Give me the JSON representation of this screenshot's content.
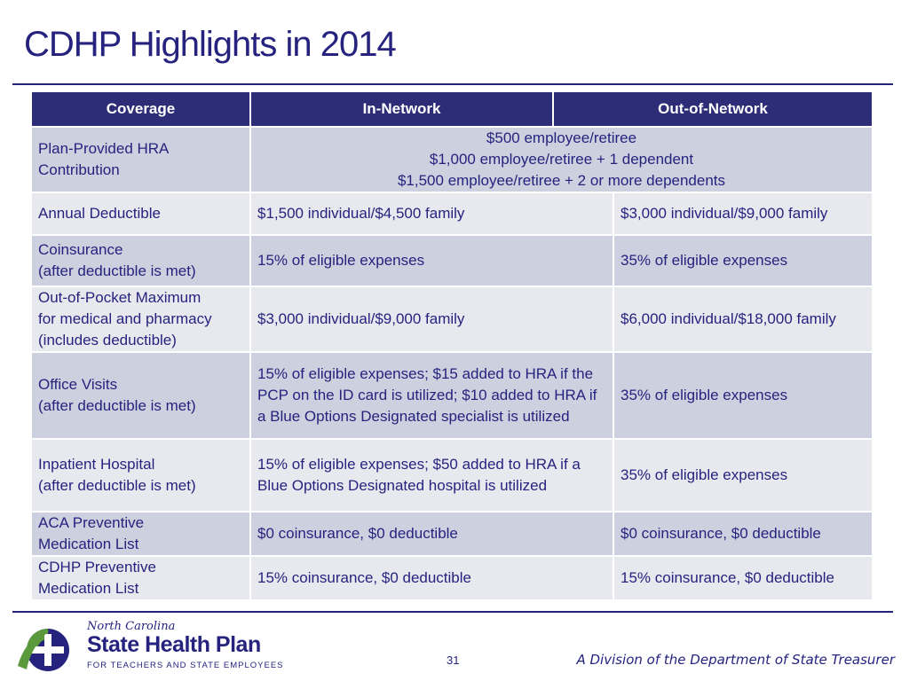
{
  "slide": {
    "title": "CDHP Highlights in 2014",
    "page_number": "31",
    "footer_right": "A Division of the Department of State Treasurer"
  },
  "logo": {
    "state": "North Carolina",
    "name": "State Health Plan",
    "tagline": "FOR TEACHERS AND STATE EMPLOYEES"
  },
  "table": {
    "headers": [
      "Coverage",
      "In-Network",
      "Out-of-Network"
    ],
    "rows": [
      {
        "coverage": [
          "Plan-Provided HRA",
          "Contribution"
        ],
        "shared": [
          "$500 employee/retiree",
          "$1,000 employee/retiree + 1 dependent",
          "$1,500 employee/retiree + 2 or more dependents"
        ]
      },
      {
        "coverage": [
          "Annual Deductible"
        ],
        "in_network": "$1,500 individual/$4,500 family",
        "out_of_network": "$3,000 individual/$9,000 family"
      },
      {
        "coverage": [
          "Coinsurance",
          "(after deductible is met)"
        ],
        "in_network": "15% of eligible expenses",
        "out_of_network": "35% of eligible expenses"
      },
      {
        "coverage": [
          "Out-of-Pocket Maximum",
          "for medical and pharmacy",
          "(includes deductible)"
        ],
        "in_network": "$3,000 individual/$9,000 family",
        "out_of_network": "$6,000 individual/$18,000 family"
      },
      {
        "coverage": [
          "Office Visits",
          "(after deductible is met)"
        ],
        "in_network": "15% of eligible expenses; $15 added to HRA if the PCP on the ID card is utilized; $10 added to HRA if a Blue Options Designated specialist is utilized",
        "out_of_network": "35% of eligible expenses"
      },
      {
        "coverage": [
          "Inpatient Hospital",
          "(after deductible is met)"
        ],
        "in_network": "15% of eligible expenses; $50 added to HRA if a Blue Options Designated hospital is utilized",
        "out_of_network": "35% of eligible expenses"
      },
      {
        "coverage": [
          "ACA Preventive",
          "Medication List"
        ],
        "in_network": "$0 coinsurance, $0 deductible",
        "out_of_network": "$0 coinsurance, $0 deductible"
      },
      {
        "coverage": [
          "CDHP Preventive",
          "Medication List"
        ],
        "in_network": "15% coinsurance, $0 deductible",
        "out_of_network": "15% coinsurance, $0 deductible"
      }
    ]
  },
  "colors": {
    "brand_navy": "#26237f",
    "header_fill": "#2d2c77",
    "row_dark": "#cdd0de",
    "row_light": "#e8e9ef",
    "logo_green": "#5a9a3c"
  }
}
